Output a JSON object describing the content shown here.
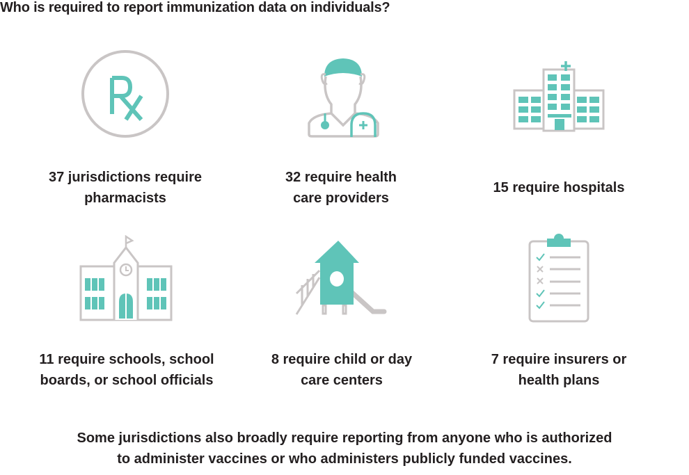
{
  "title": "Who is required to report immunization data on individuals?",
  "colors": {
    "accent": "#5fc4b8",
    "outline": "#c9c5c5",
    "text": "#231f20"
  },
  "items": [
    {
      "icon": "rx-icon",
      "line1": "37 jurisdictions require",
      "line2": "pharmacists",
      "rx_text": "Rx"
    },
    {
      "icon": "doctor-icon",
      "line1": "32 require health",
      "line2": "care providers"
    },
    {
      "icon": "hospital-icon",
      "line1": "15 require hospitals",
      "line2": ""
    },
    {
      "icon": "school-icon",
      "line1": "11 require schools, school",
      "line2": "boards, or school officials"
    },
    {
      "icon": "playground-icon",
      "line1": "8 require child or day",
      "line2": "care centers"
    },
    {
      "icon": "clipboard-icon",
      "line1": "7 require insurers or",
      "line2": "health plans"
    }
  ],
  "footer": {
    "line1": "Some jurisdictions also broadly require reporting from anyone who is authorized",
    "line2": "to administer vaccines or who administers publicly funded vaccines."
  }
}
